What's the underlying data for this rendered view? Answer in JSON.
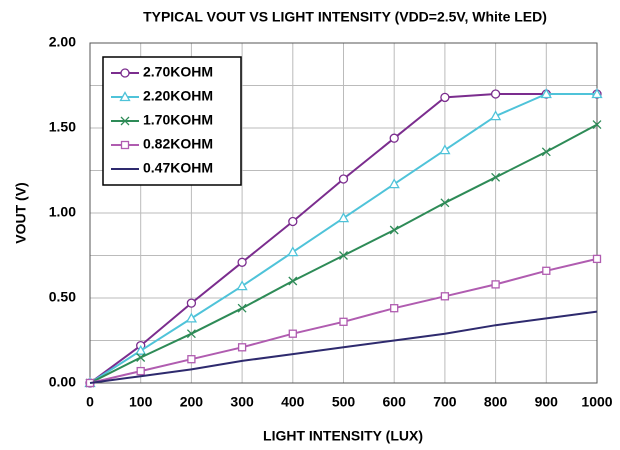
{
  "chart_data": {
    "type": "line",
    "title": "TYPICAL VOUT VS LIGHT INTENSITY (VDD=2.5V, White LED)",
    "xlabel": "LIGHT INTENSITY (LUX)",
    "ylabel": "VOUT (V)",
    "x": [
      0,
      100,
      200,
      300,
      400,
      500,
      600,
      700,
      800,
      900,
      1000
    ],
    "series": [
      {
        "name": "2.70KOHM",
        "color": "#7b2d8e",
        "marker": "circle",
        "values": [
          0,
          0.22,
          0.47,
          0.71,
          0.95,
          1.2,
          1.44,
          1.68,
          1.7,
          1.7,
          1.7
        ]
      },
      {
        "name": "2.20KOHM",
        "color": "#4fc3d9",
        "marker": "triangle",
        "values": [
          0,
          0.19,
          0.38,
          0.57,
          0.77,
          0.97,
          1.17,
          1.37,
          1.57,
          1.7,
          1.7
        ]
      },
      {
        "name": "1.70KOHM",
        "color": "#2e8b57",
        "marker": "x",
        "values": [
          0,
          0.15,
          0.29,
          0.44,
          0.6,
          0.75,
          0.9,
          1.06,
          1.21,
          1.36,
          1.52
        ]
      },
      {
        "name": "0.82KOHM",
        "color": "#b05cb0",
        "marker": "square",
        "values": [
          0,
          0.07,
          0.14,
          0.21,
          0.29,
          0.36,
          0.44,
          0.51,
          0.58,
          0.66,
          0.73
        ]
      },
      {
        "name": "0.47KOHM",
        "color": "#2e2a6e",
        "marker": "none",
        "values": [
          0,
          0.04,
          0.08,
          0.13,
          0.17,
          0.21,
          0.25,
          0.29,
          0.34,
          0.38,
          0.42
        ]
      }
    ],
    "xlim": [
      0,
      1000
    ],
    "xticks": [
      0,
      100,
      200,
      300,
      400,
      500,
      600,
      700,
      800,
      900,
      1000
    ],
    "ylim": [
      0,
      2
    ],
    "yticks": [
      {
        "value": 0,
        "label": "0.00"
      },
      {
        "value": 0.5,
        "label": "0.50"
      },
      {
        "value": 1,
        "label": "1.00"
      },
      {
        "value": 1.5,
        "label": "1.50"
      },
      {
        "value": 2,
        "label": "2.00"
      }
    ],
    "yminor_grid": [
      0.25,
      0.75,
      1.25,
      1.75
    ],
    "grid": true,
    "legend": "upper-left"
  }
}
